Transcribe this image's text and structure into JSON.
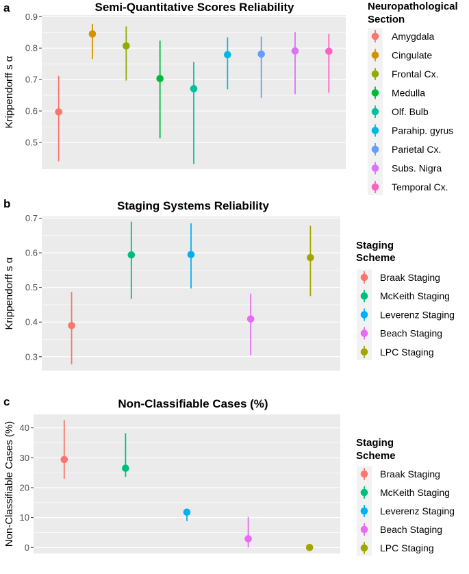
{
  "chart_data": [
    {
      "panel": "a",
      "type": "scatter",
      "subtype": "point-range",
      "title": "Semi-Quantitative Scores Reliability",
      "xlabel": "",
      "ylabel": "Krippendorff s α",
      "ylim": [
        0.415,
        0.905
      ],
      "yticks": [
        0.5,
        0.6,
        0.7,
        0.8,
        0.9
      ],
      "ytick_labels": [
        "0.5",
        "0.6",
        "0.7",
        "0.8",
        "0.9"
      ],
      "grid": true,
      "legend_title": "Neuropathological Section",
      "legend_title_lines": [
        "Neuropathological",
        "Section"
      ],
      "legend_position": "right",
      "series": [
        {
          "name": "Amygdala",
          "color": "#F8766D",
          "value": 0.597,
          "low": 0.44,
          "high": 0.712
        },
        {
          "name": "Cingulate",
          "color": "#D39200",
          "value": 0.845,
          "low": 0.765,
          "high": 0.877
        },
        {
          "name": "Frontal Cx.",
          "color": "#93AA00",
          "value": 0.807,
          "low": 0.697,
          "high": 0.869
        },
        {
          "name": "Medulla",
          "color": "#00BA38",
          "value": 0.703,
          "low": 0.513,
          "high": 0.824
        },
        {
          "name": "Olf. Bulb",
          "color": "#00C19F",
          "value": 0.671,
          "low": 0.432,
          "high": 0.756
        },
        {
          "name": "Parahip. gyrus",
          "color": "#00B9E3",
          "value": 0.779,
          "low": 0.669,
          "high": 0.834
        },
        {
          "name": "Parietal Cx.",
          "color": "#619CFF",
          "value": 0.781,
          "low": 0.642,
          "high": 0.836
        },
        {
          "name": "Subs. Nigra",
          "color": "#DB72FB",
          "value": 0.791,
          "low": 0.654,
          "high": 0.851
        },
        {
          "name": "Temporal Cx.",
          "color": "#FF61C3",
          "value": 0.79,
          "low": 0.658,
          "high": 0.845
        }
      ]
    },
    {
      "panel": "b",
      "type": "scatter",
      "subtype": "point-range",
      "title": "Staging Systems Reliability",
      "xlabel": "",
      "ylabel": "Krippendorff s α",
      "ylim": [
        0.26,
        0.705
      ],
      "yticks": [
        0.3,
        0.4,
        0.5,
        0.6,
        0.7
      ],
      "ytick_labels": [
        "0.3",
        "0.4",
        "0.5",
        "0.6",
        "0.7"
      ],
      "grid": true,
      "legend_title": "Staging Scheme",
      "legend_title_lines": [
        "Staging",
        "Scheme"
      ],
      "legend_position": "right",
      "series": [
        {
          "name": "Braak Staging",
          "color": "#F8766D",
          "value": 0.39,
          "low": 0.278,
          "high": 0.487
        },
        {
          "name": "McKeith Staging",
          "color": "#00BF7D",
          "value": 0.594,
          "low": 0.467,
          "high": 0.69
        },
        {
          "name": "Leverenz Staging",
          "color": "#00B0F6",
          "value": 0.595,
          "low": 0.497,
          "high": 0.685
        },
        {
          "name": "Beach Staging",
          "color": "#E76BF3",
          "value": 0.409,
          "low": 0.305,
          "high": 0.482
        },
        {
          "name": "LPC Staging",
          "color": "#A3A500",
          "value": 0.586,
          "low": 0.475,
          "high": 0.678
        }
      ]
    },
    {
      "panel": "c",
      "type": "scatter",
      "subtype": "point-range",
      "title": "Non-Classifiable Cases (%)",
      "xlabel": "",
      "ylabel": "Non-Classifiable Cases (%)",
      "ylim": [
        -2.0,
        44.5
      ],
      "yticks": [
        0,
        10,
        20,
        30,
        40
      ],
      "ytick_labels": [
        "0",
        "10",
        "20",
        "30",
        "40"
      ],
      "grid": true,
      "legend_title": "Staging Scheme",
      "legend_title_lines": [
        "Staging",
        "Scheme"
      ],
      "legend_position": "right",
      "series": [
        {
          "name": "Braak Staging",
          "color": "#F8766D",
          "value": 29.4,
          "low": 23.0,
          "high": 42.6
        },
        {
          "name": "McKeith Staging",
          "color": "#00BF7D",
          "value": 26.5,
          "low": 23.6,
          "high": 38.2
        },
        {
          "name": "Leverenz Staging",
          "color": "#00B0F6",
          "value": 11.8,
          "low": 8.8,
          "high": 12.6
        },
        {
          "name": "Beach Staging",
          "color": "#E76BF3",
          "value": 2.9,
          "low": 0.0,
          "high": 10.2
        },
        {
          "name": "LPC Staging",
          "color": "#A3A500",
          "value": 0.0,
          "low": 0.0,
          "high": 0.0
        }
      ]
    }
  ]
}
